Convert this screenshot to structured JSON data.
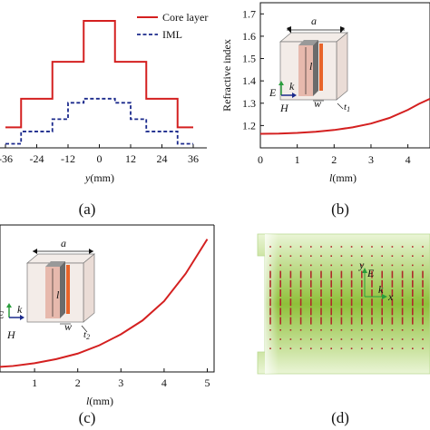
{
  "panel_labels": [
    "(a)",
    "(b)",
    "(c)",
    "(d)"
  ],
  "colors": {
    "core": "#d42020",
    "iml": "#1b2a8c",
    "metal": "#6b6b6b",
    "strip": "#e8642a",
    "block": "#e7b9ad",
    "grid_green": "#8fc03a"
  },
  "panel_a": {
    "legend": [
      {
        "label": "Core layer",
        "style": "solid",
        "color": "#d42020"
      },
      {
        "label": "IML",
        "style": "dashed",
        "color": "#1b2a8c"
      }
    ],
    "x_ticks": [
      "-36",
      "-24",
      "-12",
      "0",
      "12",
      "24",
      "36"
    ],
    "x_label": "y(mm)"
  },
  "panel_b": {
    "y_label": "Refractive index",
    "y_ticks": [
      "1.2",
      "1.3",
      "1.4",
      "1.5",
      "1.6",
      "1.7"
    ],
    "x_ticks": [
      "0",
      "1",
      "2",
      "3",
      "4"
    ],
    "x_label": "l(mm)",
    "inset": {
      "a": "a",
      "l": "l",
      "w": "w",
      "t": "t1",
      "E": "E",
      "k": "k",
      "H": "H"
    }
  },
  "panel_c": {
    "x_ticks": [
      "1",
      "2",
      "3",
      "4",
      "5"
    ],
    "x_label": "l(mm)",
    "inset": {
      "a": "a",
      "l": "l",
      "w": "w",
      "t": "t2",
      "E": "E",
      "k": "k",
      "H": "H"
    }
  },
  "panel_d": {
    "axes": {
      "y": "y",
      "x": "x",
      "k": "k",
      "E": "E"
    }
  },
  "chart_data": [
    {
      "type": "line",
      "panel": "a",
      "xlabel": "y(mm)",
      "x_ticks": [
        -36,
        -24,
        -12,
        0,
        12,
        24,
        36
      ],
      "series": [
        {
          "name": "Core layer",
          "x": [
            -36,
            -30,
            -30,
            -18,
            -18,
            -6,
            -6,
            6,
            6,
            18,
            18,
            30,
            30,
            36
          ],
          "y": [
            1.1,
            1.1,
            1.24,
            1.24,
            1.42,
            1.42,
            1.62,
            1.62,
            1.42,
            1.42,
            1.24,
            1.24,
            1.1,
            1.1
          ]
        },
        {
          "name": "IML",
          "x": [
            -36,
            -30,
            -30,
            -18,
            -18,
            -12,
            -12,
            -6,
            -6,
            6,
            6,
            12,
            12,
            18,
            18,
            30,
            30,
            36
          ],
          "y": [
            1.02,
            1.02,
            1.08,
            1.08,
            1.14,
            1.14,
            1.22,
            1.22,
            1.24,
            1.24,
            1.22,
            1.22,
            1.14,
            1.14,
            1.08,
            1.08,
            1.02,
            1.02
          ]
        }
      ]
    },
    {
      "type": "line",
      "panel": "b",
      "xlabel": "l(mm)",
      "ylabel": "Refractive index",
      "xlim": [
        0,
        4.6
      ],
      "ylim": [
        1.1,
        1.75
      ],
      "series": [
        {
          "x": [
            0,
            0.5,
            1,
            1.5,
            2,
            2.5,
            3,
            3.5,
            4,
            4.3,
            4.6
          ],
          "y": [
            1.163,
            1.164,
            1.167,
            1.172,
            1.18,
            1.192,
            1.209,
            1.234,
            1.27,
            1.297,
            1.32
          ]
        }
      ]
    },
    {
      "type": "line",
      "panel": "c",
      "xlabel": "l(mm)",
      "xlim": [
        0,
        5
      ],
      "series": [
        {
          "x": [
            0,
            0.5,
            1,
            1.5,
            2,
            2.5,
            3,
            3.5,
            4,
            4.5,
            5
          ],
          "y": [
            0.02,
            0.03,
            0.05,
            0.08,
            0.12,
            0.18,
            0.26,
            0.36,
            0.5,
            0.7,
            0.95
          ]
        }
      ]
    }
  ]
}
